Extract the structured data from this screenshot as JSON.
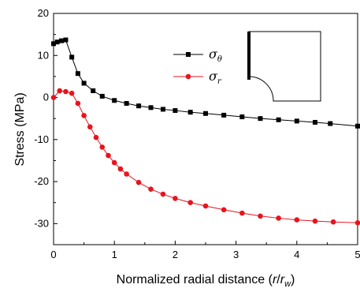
{
  "chart_data": {
    "type": "line",
    "xlabel": {
      "main": "Normalized radial distance (",
      "italic": "r",
      "slash": "/",
      "italic2": "r",
      "sub": "w",
      "close": ")"
    },
    "ylabel": "Stress (MPa)",
    "xlim": [
      0,
      5
    ],
    "ylim": [
      -35,
      20
    ],
    "xticks": [
      0,
      1,
      2,
      3,
      4,
      5
    ],
    "yticks": [
      20,
      10,
      0,
      -10,
      -20,
      -30
    ],
    "grid": false,
    "legend_position": "top-center",
    "series": [
      {
        "name": "σθ",
        "symbol": "σ",
        "subscript": "θ",
        "color": "#000000",
        "marker": "square",
        "x": [
          0,
          0.06,
          0.13,
          0.2,
          0.3,
          0.4,
          0.5,
          0.65,
          0.8,
          1.0,
          1.2,
          1.4,
          1.6,
          1.8,
          2.0,
          2.25,
          2.5,
          2.8,
          3.1,
          3.4,
          3.7,
          4.0,
          4.3,
          4.55,
          5.0
        ],
        "y": [
          12.8,
          13.2,
          13.5,
          13.7,
          9.6,
          5.7,
          3.4,
          1.6,
          0.3,
          -0.7,
          -1.4,
          -2.0,
          -2.4,
          -2.8,
          -3.1,
          -3.5,
          -3.8,
          -4.2,
          -4.6,
          -5.0,
          -5.3,
          -5.6,
          -5.9,
          -6.2,
          -6.8
        ]
      },
      {
        "name": "σr",
        "symbol": "σ",
        "subscript": "r",
        "color": "#e8141d",
        "marker": "circle",
        "x": [
          0,
          0.1,
          0.2,
          0.3,
          0.4,
          0.5,
          0.6,
          0.7,
          0.8,
          0.9,
          1.0,
          1.1,
          1.2,
          1.4,
          1.6,
          1.8,
          2.0,
          2.25,
          2.5,
          2.8,
          3.1,
          3.4,
          3.7,
          4.0,
          4.3,
          4.6,
          5.0
        ],
        "y": [
          0.0,
          1.6,
          1.4,
          1.0,
          -1.4,
          -4.3,
          -7.0,
          -9.5,
          -11.8,
          -13.8,
          -15.5,
          -17.0,
          -18.2,
          -20.2,
          -21.8,
          -23.0,
          -24.0,
          -25.0,
          -25.8,
          -26.7,
          -27.5,
          -28.2,
          -28.7,
          -29.1,
          -29.4,
          -29.6,
          -29.8
        ]
      }
    ]
  }
}
